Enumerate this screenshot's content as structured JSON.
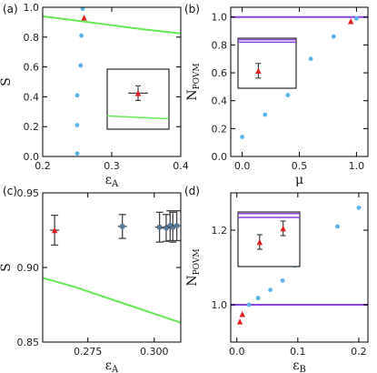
{
  "colors": {
    "blue": "#5ab4ea",
    "red": "#e02020",
    "green": "#66e855",
    "purple": "#8844dd",
    "errbar": "#444444",
    "square": "#557799"
  },
  "chart_data": [
    {
      "type": "scatter",
      "panel_label": "(a)",
      "xlabel": "ε",
      "xlabel_sub": "A",
      "ylabel": "S",
      "xlim": [
        0.2,
        0.4
      ],
      "ylim": [
        0.0,
        1.0
      ],
      "x_ticks": [
        0.2,
        0.3,
        0.4
      ],
      "x_tick_labels": [
        "0.2",
        "0.3",
        "0.4"
      ],
      "y_ticks": [
        0.0,
        0.2,
        0.4,
        0.6,
        0.8,
        1.0
      ],
      "y_tick_labels": [
        "0.0",
        "0.2",
        "0.4",
        "0.6",
        "0.8",
        "1.0"
      ],
      "theory_curve": {
        "x": [
          0.2,
          0.25,
          0.3,
          0.35,
          0.4
        ],
        "y": [
          0.94,
          0.91,
          0.88,
          0.85,
          0.825
        ]
      },
      "points": [
        {
          "x": 0.25,
          "y": 0.02
        },
        {
          "x": 0.25,
          "y": 0.21
        },
        {
          "x": 0.25,
          "y": 0.41
        },
        {
          "x": 0.255,
          "y": 0.61
        },
        {
          "x": 0.256,
          "y": 0.81
        },
        {
          "x": 0.258,
          "y": 0.99
        }
      ],
      "experiment": [
        {
          "x": 0.26,
          "y": 0.93
        }
      ],
      "inset": {
        "marker": {
          "x": 0.5,
          "y": 0.6
        },
        "line_y": 0.22
      }
    },
    {
      "type": "scatter",
      "panel_label": "(b)",
      "xlabel": "μ",
      "ylabel": "N",
      "ylabel_sub": "POVM",
      "xlim": [
        -0.1,
        1.1
      ],
      "ylim": [
        0.0,
        1.07
      ],
      "x_ticks": [
        0.0,
        0.5,
        1.0
      ],
      "x_tick_labels": [
        "0.0",
        "0.5",
        "1.0"
      ],
      "y_ticks": [
        0.0,
        0.2,
        0.4,
        0.6,
        0.8,
        1.0
      ],
      "y_tick_labels": [
        "0.0",
        "0.2",
        "0.4",
        "0.6",
        "0.8",
        "1.0"
      ],
      "reference_line": 1.0,
      "points": [
        {
          "x": 0.0,
          "y": 0.14
        },
        {
          "x": 0.2,
          "y": 0.3
        },
        {
          "x": 0.4,
          "y": 0.44
        },
        {
          "x": 0.6,
          "y": 0.7
        },
        {
          "x": 0.8,
          "y": 0.86
        },
        {
          "x": 1.0,
          "y": 0.99
        }
      ],
      "experiment": [
        {
          "x": 0.95,
          "y": 0.97
        }
      ],
      "inset": {
        "marker": {
          "x": 0.35,
          "y": 0.35
        },
        "line_y": 0.92,
        "top_line_y": 0.97
      }
    },
    {
      "type": "scatter",
      "panel_label": "(c)",
      "xlabel": "ε",
      "xlabel_sub": "A",
      "ylabel": "S",
      "xlim": [
        0.258,
        0.31
      ],
      "ylim": [
        0.85,
        0.95
      ],
      "x_ticks": [
        0.275,
        0.3
      ],
      "x_tick_labels": [
        "0.275",
        "0.300"
      ],
      "y_ticks": [
        0.85,
        0.9,
        0.95
      ],
      "y_tick_labels": [
        "0.85",
        "0.90",
        "0.95"
      ],
      "theory_curve": {
        "x": [
          0.258,
          0.27,
          0.28,
          0.29,
          0.3,
          0.31
        ],
        "y": [
          0.893,
          0.887,
          0.881,
          0.875,
          0.869,
          0.863
        ]
      },
      "points": [
        {
          "x": 0.2625,
          "y": 0.925,
          "err": 0.01
        },
        {
          "x": 0.288,
          "y": 0.9275,
          "err": 0.008
        },
        {
          "x": 0.302,
          "y": 0.927,
          "err": 0.01
        },
        {
          "x": 0.3045,
          "y": 0.9265,
          "err": 0.009
        },
        {
          "x": 0.306,
          "y": 0.928,
          "err": 0.01
        },
        {
          "x": 0.307,
          "y": 0.927,
          "err": 0.01
        },
        {
          "x": 0.3085,
          "y": 0.928,
          "err": 0.01
        }
      ]
    },
    {
      "type": "scatter",
      "panel_label": "(d)",
      "xlabel": "ε",
      "xlabel_sub": "B",
      "ylabel": "N",
      "ylabel_sub": "POVM",
      "xlim": [
        -0.01,
        0.215
      ],
      "ylim": [
        0.9,
        1.3
      ],
      "x_ticks": [
        0.0,
        0.1,
        0.2
      ],
      "x_tick_labels": [
        "0.0",
        "0.1",
        "0.2"
      ],
      "y_ticks": [
        1.0,
        1.2
      ],
      "y_tick_labels": [
        "1.0",
        "1.2"
      ],
      "reference_line": 1.0,
      "points": [
        {
          "x": 0.02,
          "y": 1.0
        },
        {
          "x": 0.035,
          "y": 1.018
        },
        {
          "x": 0.055,
          "y": 1.04
        },
        {
          "x": 0.075,
          "y": 1.065
        },
        {
          "x": 0.095,
          "y": 1.105
        },
        {
          "x": 0.165,
          "y": 1.21
        },
        {
          "x": 0.2,
          "y": 1.26
        }
      ],
      "experiment": [
        {
          "x": 0.005,
          "y": 0.955
        },
        {
          "x": 0.009,
          "y": 0.975
        }
      ],
      "inset": {
        "markers": [
          {
            "x": 0.35,
            "y": 0.45
          },
          {
            "x": 0.73,
            "y": 0.7
          }
        ],
        "line_y": 0.9,
        "top_line_y": 0.97
      }
    }
  ]
}
